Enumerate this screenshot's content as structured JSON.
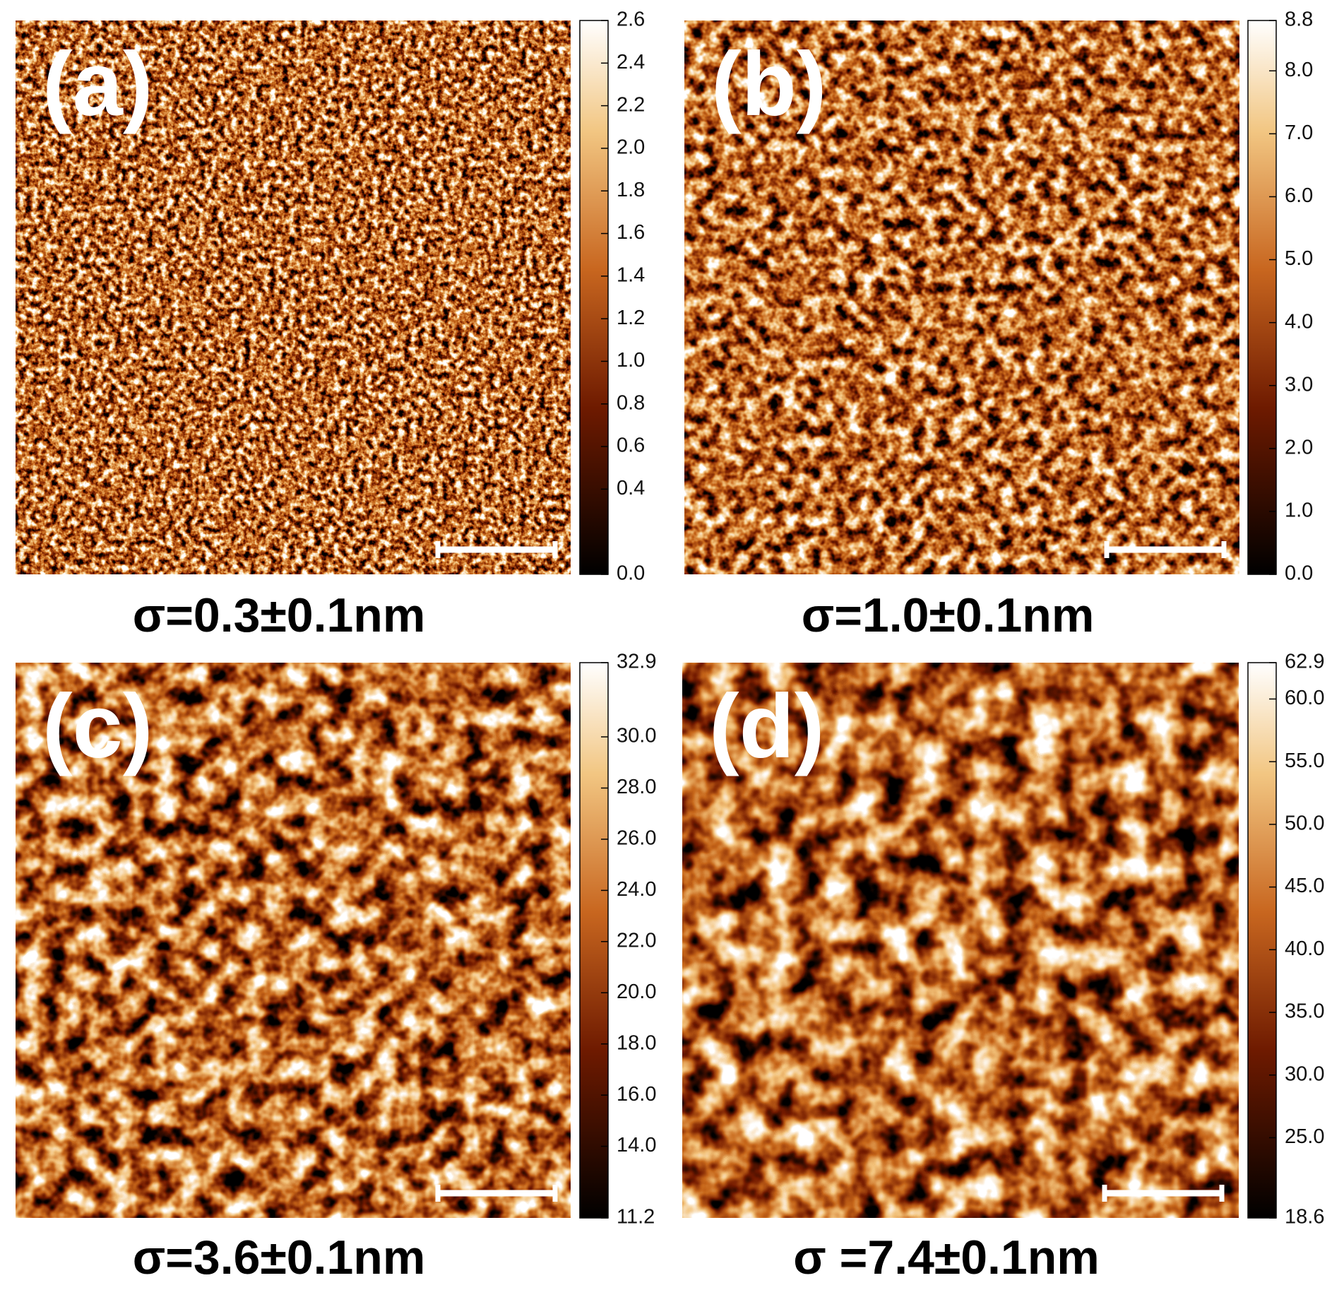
{
  "panels": [
    {
      "label": "(a)",
      "caption": "σ=0.3±0.1nm",
      "colorbar": {
        "ticks": [
          2.6,
          2.4,
          2.2,
          {
            "value": 2,
            "label": "2.0"
          },
          1.8,
          1.6,
          1.4,
          1.2,
          {
            "value": 1,
            "label": "1.0"
          },
          0.8,
          0.6,
          0.4,
          {
            "value": 0,
            "label": "0.0"
          }
        ]
      }
    },
    {
      "label": "(b)",
      "caption": "σ=1.0±0.1nm",
      "colorbar": {
        "ticks": [
          8.8,
          {
            "value": 8,
            "label": "8.0"
          },
          {
            "value": 7,
            "label": "7.0"
          },
          {
            "value": 6,
            "label": "6.0"
          },
          {
            "value": 5,
            "label": "5.0"
          },
          {
            "value": 4,
            "label": "4.0"
          },
          {
            "value": 3,
            "label": "3.0"
          },
          {
            "value": 2,
            "label": "2.0"
          },
          {
            "value": 1,
            "label": "1.0"
          },
          {
            "value": 0,
            "label": "0.0"
          }
        ]
      }
    },
    {
      "label": "(c)",
      "caption": "σ=3.6±0.1nm",
      "colorbar": {
        "ticks": [
          32.9,
          {
            "value": 30,
            "label": "30.0"
          },
          {
            "value": 28,
            "label": "28.0"
          },
          {
            "value": 26,
            "label": "26.0"
          },
          {
            "value": 24,
            "label": "24.0"
          },
          {
            "value": 22,
            "label": "22.0"
          },
          {
            "value": 20,
            "label": "20.0"
          },
          {
            "value": 18,
            "label": "18.0"
          },
          {
            "value": 16,
            "label": "16.0"
          },
          {
            "value": 14,
            "label": "14.0"
          },
          11.2
        ]
      }
    },
    {
      "label": "(d)",
      "caption": "σ =7.4±0.1nm",
      "colorbar": {
        "ticks": [
          62.9,
          {
            "value": 60,
            "label": "60.0"
          },
          {
            "value": 55,
            "label": "55.0"
          },
          {
            "value": 50,
            "label": "50.0"
          },
          {
            "value": 45,
            "label": "45.0"
          },
          {
            "value": 40,
            "label": "40.0"
          },
          {
            "value": 35,
            "label": "35.0"
          },
          {
            "value": 30,
            "label": "30.0"
          },
          {
            "value": 25,
            "label": "25.0"
          },
          18.6
        ]
      }
    }
  ]
}
